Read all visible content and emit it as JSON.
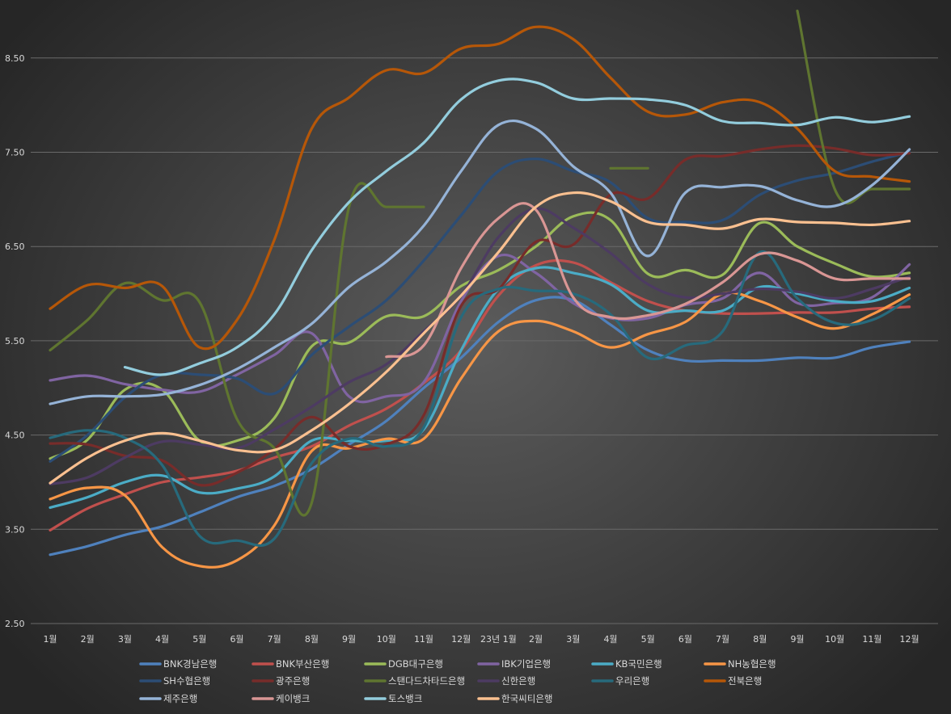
{
  "chart_data": {
    "type": "line",
    "title": "",
    "xlabel": "",
    "ylabel": "",
    "ylim": [
      2.5,
      9.0
    ],
    "yticks": [
      "2.50",
      "3.50",
      "4.50",
      "5.50",
      "6.50",
      "7.50",
      "8.50"
    ],
    "categories": [
      "1월",
      "2월",
      "3월",
      "4월",
      "5월",
      "6월",
      "7월",
      "8월",
      "9월",
      "10월",
      "11월",
      "12월",
      "23년 1월",
      "2월",
      "3월",
      "4월",
      "5월",
      "6월",
      "7월",
      "8월",
      "9월",
      "10월",
      "11월",
      "12월"
    ],
    "grid": true,
    "legend_position": "bottom",
    "series": [
      {
        "name": "BNK경남은행",
        "color": "#4f81bd",
        "values": [
          3.23,
          3.32,
          3.44,
          3.53,
          3.68,
          3.84,
          3.96,
          4.14,
          4.4,
          4.65,
          5.0,
          5.32,
          5.7,
          5.93,
          5.93,
          5.67,
          5.4,
          5.29,
          5.29,
          5.29,
          5.32,
          5.32,
          5.43,
          5.49
        ]
      },
      {
        "name": "BNK부산은행",
        "color": "#c0504d",
        "values": [
          3.49,
          3.72,
          3.87,
          4.0,
          4.05,
          4.12,
          4.26,
          4.38,
          4.6,
          4.78,
          5.05,
          5.4,
          5.98,
          6.3,
          6.33,
          6.12,
          5.92,
          5.82,
          5.79,
          5.79,
          5.8,
          5.8,
          5.84,
          5.86
        ]
      },
      {
        "name": "DGB대구은행",
        "color": "#9bbb59",
        "values": [
          4.25,
          4.45,
          4.98,
          4.98,
          4.44,
          4.44,
          4.68,
          5.44,
          5.48,
          5.76,
          5.76,
          6.08,
          6.25,
          6.5,
          6.82,
          6.78,
          6.21,
          6.25,
          6.2,
          6.75,
          6.5,
          6.32,
          6.18,
          6.22
        ]
      },
      {
        "name": "IBK기업은행",
        "color": "#8064a2",
        "values": [
          5.08,
          5.13,
          5.04,
          4.98,
          4.96,
          5.14,
          5.35,
          5.58,
          4.91,
          4.91,
          5.06,
          5.92,
          6.4,
          6.22,
          5.9,
          5.74,
          5.74,
          5.88,
          5.95,
          6.22,
          5.9,
          5.9,
          5.96,
          6.31
        ]
      },
      {
        "name": "KB국민은행",
        "color": "#4bacc6",
        "values": [
          3.73,
          3.84,
          4.0,
          4.07,
          3.89,
          3.93,
          4.06,
          4.44,
          4.44,
          4.44,
          4.56,
          5.4,
          6.05,
          6.27,
          6.22,
          6.1,
          5.82,
          5.82,
          5.82,
          6.07,
          6.0,
          5.92,
          5.92,
          6.06
        ]
      },
      {
        "name": "NH농협은행",
        "color": "#f79646",
        "values": [
          3.82,
          3.94,
          3.86,
          3.31,
          3.11,
          3.17,
          3.54,
          4.33,
          4.36,
          4.46,
          4.46,
          5.1,
          5.6,
          5.71,
          5.6,
          5.43,
          5.57,
          5.7,
          6.0,
          5.92,
          5.75,
          5.63,
          5.78,
          5.99
        ]
      },
      {
        "name": "SH수협은행",
        "color": "#2c4d75",
        "values": [
          4.22,
          4.5,
          4.9,
          5.14,
          5.14,
          5.1,
          4.94,
          5.35,
          5.65,
          5.93,
          6.35,
          6.83,
          7.3,
          7.43,
          7.3,
          7.18,
          6.8,
          6.76,
          6.78,
          7.05,
          7.2,
          7.28,
          7.4,
          7.5
        ]
      },
      {
        "name": "광주은행",
        "color": "#772c2a",
        "values": [
          4.41,
          4.4,
          4.28,
          4.23,
          3.97,
          4.1,
          4.35,
          4.69,
          4.38,
          4.4,
          4.71,
          5.87,
          6.05,
          6.55,
          6.52,
          7.05,
          7.01,
          7.42,
          7.46,
          7.53,
          7.57,
          7.54,
          7.47,
          7.49
        ]
      },
      {
        "name": "스탠다드차타드은행",
        "color": "#5f7530",
        "values": [
          5.4,
          5.72,
          6.11,
          5.93,
          5.91,
          4.67,
          4.36,
          3.78,
          6.92,
          6.92,
          6.92,
          null,
          null,
          null,
          null,
          7.33,
          7.33,
          null,
          null,
          null,
          9.0,
          7.11,
          7.11,
          7.11
        ]
      },
      {
        "name": "신한은행",
        "color": "#4d3b62",
        "values": [
          3.98,
          4.05,
          4.26,
          4.43,
          4.4,
          4.36,
          4.56,
          4.8,
          5.06,
          5.25,
          5.6,
          5.98,
          6.6,
          6.9,
          6.7,
          6.43,
          6.1,
          5.96,
          6.0,
          6.05,
          6.02,
          5.95,
          6.05,
          6.18
        ]
      },
      {
        "name": "우리은행",
        "color": "#276a7c",
        "values": [
          4.47,
          4.55,
          4.47,
          4.18,
          3.43,
          3.38,
          3.4,
          4.2,
          4.46,
          4.38,
          4.58,
          5.75,
          6.05,
          6.03,
          6.0,
          5.78,
          5.32,
          5.45,
          5.6,
          6.44,
          5.95,
          5.69,
          5.72,
          5.95
        ]
      },
      {
        "name": "전북은행",
        "color": "#b65708",
        "values": [
          5.84,
          6.09,
          6.06,
          6.08,
          5.43,
          5.72,
          6.57,
          7.75,
          8.08,
          8.37,
          8.34,
          8.6,
          8.65,
          8.83,
          8.7,
          8.29,
          7.93,
          7.9,
          8.03,
          8.03,
          7.75,
          7.3,
          7.24,
          7.19
        ]
      },
      {
        "name": "제주은행",
        "color": "#95b3d7",
        "values": [
          4.83,
          4.91,
          4.91,
          4.93,
          5.03,
          5.2,
          5.43,
          5.68,
          6.07,
          6.34,
          6.72,
          7.3,
          7.79,
          7.75,
          7.35,
          7.07,
          6.4,
          7.07,
          7.13,
          7.14,
          6.99,
          6.93,
          7.15,
          7.53
        ]
      },
      {
        "name": "케이뱅크",
        "color": "#d99694",
        "values": [
          null,
          null,
          null,
          null,
          null,
          null,
          null,
          null,
          null,
          5.33,
          5.45,
          6.27,
          6.8,
          6.89,
          5.96,
          5.75,
          5.77,
          5.89,
          6.12,
          6.42,
          6.35,
          6.16,
          6.16,
          6.16
        ]
      },
      {
        "name": "토스뱅크",
        "color": "#93cddd",
        "values": [
          null,
          null,
          5.22,
          5.14,
          5.26,
          5.43,
          5.78,
          6.46,
          6.97,
          7.3,
          7.6,
          8.06,
          8.26,
          8.24,
          8.07,
          8.07,
          8.06,
          8.0,
          7.83,
          7.81,
          7.79,
          7.87,
          7.82,
          7.88
        ]
      },
      {
        "name": "한국씨티은행",
        "color": "#fac090",
        "values": [
          3.99,
          4.26,
          4.44,
          4.52,
          4.44,
          4.34,
          4.34,
          4.55,
          4.83,
          5.17,
          5.58,
          5.98,
          6.44,
          6.92,
          7.07,
          6.98,
          6.76,
          6.73,
          6.69,
          6.79,
          6.76,
          6.75,
          6.73,
          6.77
        ]
      }
    ]
  }
}
